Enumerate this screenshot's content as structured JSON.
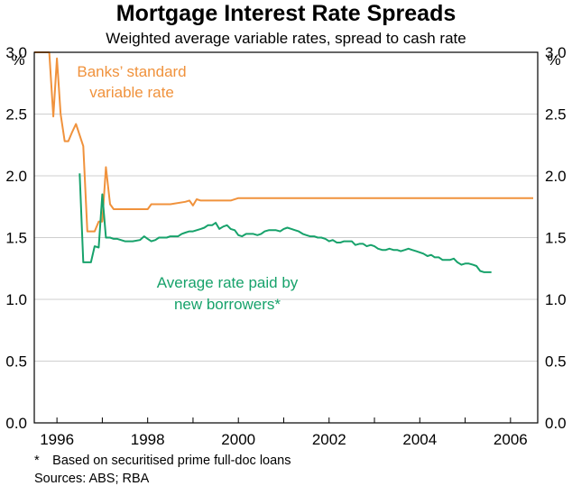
{
  "chart_data": {
    "type": "line",
    "title": "Mortgage Interest Rate Spreads",
    "subtitle": "Weighted average variable rates, spread to cash rate",
    "ylabel_left": "%",
    "ylabel_right": "%",
    "ylim": [
      0,
      3.0
    ],
    "yticks": [
      "3.0",
      "2.5",
      "2.0",
      "1.5",
      "1.0",
      "0.5",
      "0.0"
    ],
    "ytick_values": [
      3.0,
      2.5,
      2.0,
      1.5,
      1.0,
      0.5,
      0.0
    ],
    "xlim": [
      1995.5,
      2006.6
    ],
    "xticks": [
      "1996",
      "1998",
      "2000",
      "2002",
      "2004",
      "2006"
    ],
    "xtick_values": [
      1996,
      1998,
      2000,
      2002,
      2004,
      2006
    ],
    "grid": true,
    "series": [
      {
        "name": "Banks' standard variable rate",
        "label_lines": [
          "Banks’ standard",
          "variable rate"
        ],
        "color": "#f0923c",
        "x": [
          1995.5,
          1995.83,
          1995.92,
          1996.0,
          1996.08,
          1996.17,
          1996.25,
          1996.33,
          1996.42,
          1996.58,
          1996.67,
          1996.75,
          1996.83,
          1996.92,
          1997.0,
          1997.08,
          1997.17,
          1997.25,
          1997.33,
          1997.42,
          1997.5,
          1998.0,
          1998.08,
          1998.5,
          1998.83,
          1998.92,
          1999.0,
          1999.08,
          1999.17,
          1999.5,
          1999.83,
          2000.0,
          2000.08,
          2006.5
        ],
        "y": [
          3.0,
          3.0,
          2.48,
          2.95,
          2.5,
          2.28,
          2.28,
          2.35,
          2.42,
          2.24,
          1.55,
          1.55,
          1.55,
          1.63,
          1.63,
          2.07,
          1.77,
          1.73,
          1.73,
          1.73,
          1.73,
          1.73,
          1.77,
          1.77,
          1.79,
          1.8,
          1.76,
          1.81,
          1.8,
          1.8,
          1.8,
          1.82,
          1.82,
          1.82
        ]
      },
      {
        "name": "Average rate paid by new borrowers*",
        "label_lines": [
          "Average rate paid by",
          "new borrowers*"
        ],
        "color": "#17a26b",
        "x": [
          1996.5,
          1996.58,
          1996.67,
          1996.75,
          1996.83,
          1996.92,
          1997.0,
          1997.08,
          1997.17,
          1997.25,
          1997.33,
          1997.5,
          1997.67,
          1997.83,
          1997.92,
          1998.0,
          1998.08,
          1998.17,
          1998.25,
          1998.33,
          1998.42,
          1998.5,
          1998.58,
          1998.67,
          1998.75,
          1998.83,
          1998.92,
          1999.0,
          1999.08,
          1999.17,
          1999.25,
          1999.33,
          1999.42,
          1999.5,
          1999.58,
          1999.67,
          1999.75,
          1999.83,
          1999.92,
          2000.0,
          2000.08,
          2000.17,
          2000.25,
          2000.33,
          2000.42,
          2000.5,
          2000.58,
          2000.67,
          2000.75,
          2000.83,
          2000.92,
          2001.0,
          2001.08,
          2001.17,
          2001.25,
          2001.33,
          2001.42,
          2001.5,
          2001.58,
          2001.67,
          2001.75,
          2001.83,
          2001.92,
          2002.0,
          2002.08,
          2002.17,
          2002.25,
          2002.33,
          2002.42,
          2002.5,
          2002.58,
          2002.67,
          2002.75,
          2002.83,
          2002.92,
          2003.0,
          2003.08,
          2003.17,
          2003.25,
          2003.33,
          2003.42,
          2003.5,
          2003.58,
          2003.67,
          2003.75,
          2003.83,
          2003.92,
          2004.0,
          2004.08,
          2004.17,
          2004.25,
          2004.33,
          2004.42,
          2004.5,
          2004.58,
          2004.67,
          2004.75,
          2004.83,
          2004.92,
          2005.0,
          2005.08,
          2005.17,
          2005.25,
          2005.33,
          2005.42,
          2005.5,
          2005.58
        ],
        "y": [
          2.02,
          1.3,
          1.3,
          1.3,
          1.43,
          1.42,
          1.85,
          1.5,
          1.5,
          1.49,
          1.49,
          1.47,
          1.47,
          1.48,
          1.51,
          1.49,
          1.47,
          1.48,
          1.5,
          1.5,
          1.5,
          1.51,
          1.51,
          1.51,
          1.53,
          1.54,
          1.55,
          1.55,
          1.56,
          1.57,
          1.58,
          1.6,
          1.6,
          1.62,
          1.57,
          1.59,
          1.6,
          1.57,
          1.56,
          1.52,
          1.51,
          1.53,
          1.53,
          1.53,
          1.52,
          1.53,
          1.55,
          1.56,
          1.56,
          1.56,
          1.55,
          1.57,
          1.58,
          1.57,
          1.56,
          1.55,
          1.53,
          1.52,
          1.51,
          1.51,
          1.5,
          1.5,
          1.49,
          1.47,
          1.48,
          1.46,
          1.46,
          1.47,
          1.47,
          1.47,
          1.44,
          1.45,
          1.45,
          1.43,
          1.44,
          1.43,
          1.41,
          1.4,
          1.4,
          1.41,
          1.4,
          1.4,
          1.39,
          1.4,
          1.41,
          1.4,
          1.39,
          1.38,
          1.37,
          1.35,
          1.36,
          1.34,
          1.34,
          1.32,
          1.32,
          1.32,
          1.33,
          1.3,
          1.28,
          1.29,
          1.29,
          1.28,
          1.27,
          1.23,
          1.22,
          1.22,
          1.22
        ]
      }
    ],
    "footnote": "* Based on securitised prime full-doc loans",
    "sources": "Sources: ABS; RBA"
  }
}
